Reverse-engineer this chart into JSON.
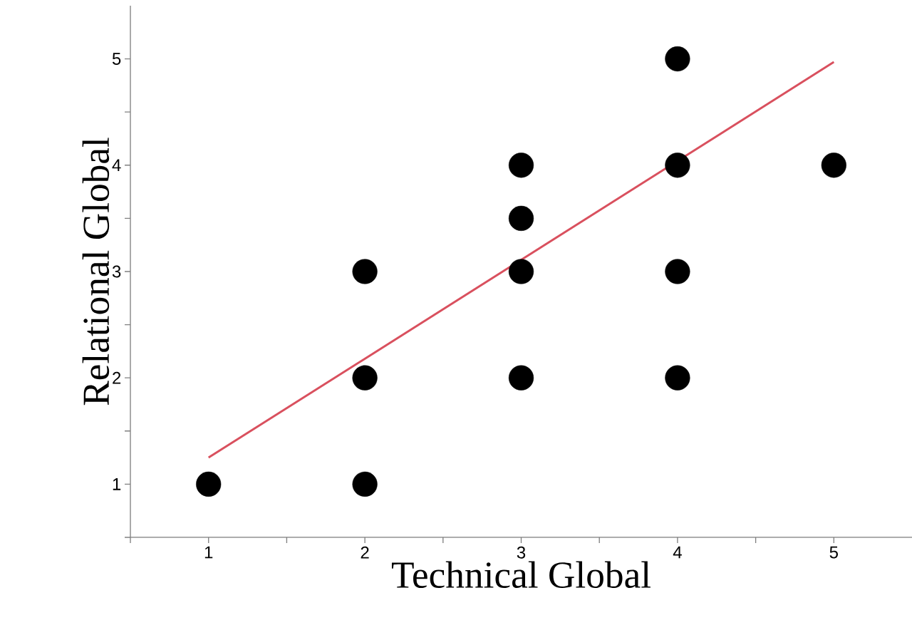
{
  "chart_data": {
    "type": "scatter",
    "xlabel": "Technical Global",
    "ylabel": "Relational Global",
    "xlim": [
      0.5,
      5.5
    ],
    "ylim": [
      0.5,
      5.5
    ],
    "xticks": [
      {
        "value": 0.5,
        "label": null
      },
      1,
      {
        "value": 1.5,
        "label": null
      },
      2,
      {
        "value": 2.5,
        "label": null
      },
      3,
      {
        "value": 3.5,
        "label": null
      },
      4,
      {
        "value": 4.5,
        "label": null
      },
      5
    ],
    "yticks": [
      {
        "value": 0.5,
        "label": null
      },
      1,
      {
        "value": 1.5,
        "label": null
      },
      2,
      {
        "value": 2.5,
        "label": null
      },
      3,
      {
        "value": 3.5,
        "label": null
      },
      4,
      {
        "value": 4.5,
        "label": null
      },
      5
    ],
    "series": [
      {
        "marker": "circle",
        "color": "#000000",
        "x": [
          1,
          2,
          2,
          2,
          3,
          3,
          3,
          3,
          4,
          4,
          4,
          4,
          5
        ],
        "values": [
          1,
          1,
          2,
          3,
          2,
          3,
          3.5,
          4,
          2,
          3,
          4,
          5,
          4
        ]
      },
      {
        "type": "line",
        "marker": "none",
        "color": "#d9505e",
        "x": [
          1,
          5
        ],
        "values": [
          1.25,
          4.97
        ]
      }
    ]
  }
}
